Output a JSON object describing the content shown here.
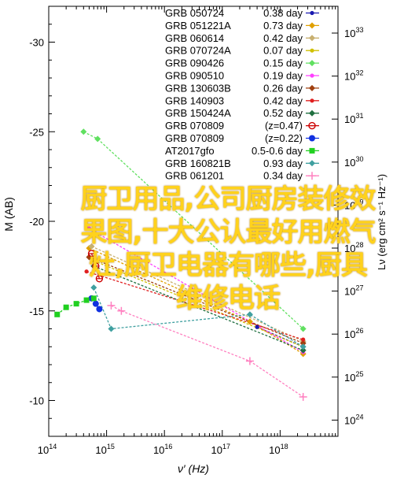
{
  "chart_data": {
    "type": "scatter",
    "title": "",
    "xlabel": "ν′ (Hz)",
    "ylabel_left": "M (AB)",
    "ylabel_right": "Lν (erg cm² s⁻¹ Hz⁻¹)",
    "x_scale": "log",
    "xlim": [
      100000000000000.0,
      1e+19
    ],
    "x_ticks": [
      100000000000000.0,
      1000000000000000.0,
      1e+16,
      1e+17,
      1e+18
    ],
    "x_tick_labels": [
      {
        "base": "10",
        "exp": "14"
      },
      {
        "base": "10",
        "exp": "15"
      },
      {
        "base": "10",
        "exp": "16"
      },
      {
        "base": "10",
        "exp": "17"
      },
      {
        "base": "10",
        "exp": "18"
      }
    ],
    "ylim_left": [
      -8,
      -32
    ],
    "y_ticks_left": [
      -10,
      -15,
      -20,
      -25,
      -30
    ],
    "y_right_ticks": [
      {
        "base": "10",
        "exp": "33"
      },
      {
        "base": "10",
        "exp": "32"
      },
      {
        "base": "10",
        "exp": "31"
      },
      {
        "base": "10",
        "exp": "30"
      },
      {
        "base": "10",
        "exp": "29"
      },
      {
        "base": "10",
        "exp": "28"
      },
      {
        "base": "10",
        "exp": "27"
      },
      {
        "base": "10",
        "exp": "26"
      },
      {
        "base": "10",
        "exp": "25"
      },
      {
        "base": "10",
        "exp": "24"
      }
    ],
    "legend_position": "top-right",
    "series": [
      {
        "name": "GRB 050724",
        "value": "0.38 day",
        "color": "#1a1ab0",
        "marker": "dot",
        "points": [
          [
            4e+17,
            -14.1
          ],
          [
            2.5e+18,
            -13.0
          ]
        ]
      },
      {
        "name": "GRB 051221A",
        "value": "0.73 day",
        "color": "#e0a000",
        "marker": "diamond",
        "points": [
          [
            500000000000000.0,
            -18.5
          ],
          [
            3e+17,
            -14.4
          ],
          [
            2.5e+18,
            -12.6
          ]
        ]
      },
      {
        "name": "GRB 060614",
        "value": "0.42 day",
        "color": "#c8b070",
        "marker": "diamond",
        "points": [
          [
            550000000000000.0,
            -18.6
          ],
          [
            2.5e+18,
            -13.3
          ]
        ]
      },
      {
        "name": "GRB 070724A",
        "value": "0.07 day",
        "color": "#d0c000",
        "marker": "dot",
        "points": [
          [
            600000000000000.0,
            -17.8
          ],
          [
            2.5e+18,
            -13.0
          ]
        ]
      },
      {
        "name": "GRB 090426",
        "value": "0.15 day",
        "color": "#60e060",
        "marker": "diamond",
        "points": [
          [
            400000000000000.0,
            -25.0
          ],
          [
            700000000000000.0,
            -24.6
          ],
          [
            2.5e+18,
            -14.0
          ]
        ]
      },
      {
        "name": "GRB 090510",
        "value": "0.19 day",
        "color": "#ff40ff",
        "marker": "dot",
        "points": [
          [
            500000000000000.0,
            -19.6
          ],
          [
            2.5e+18,
            -12.7
          ]
        ]
      },
      {
        "name": "GRB 130603B",
        "value": "0.26 day",
        "color": "#a04010",
        "marker": "diamond",
        "points": [
          [
            500000000000000.0,
            -18.0
          ],
          [
            2.5e+18,
            -13.2
          ]
        ]
      },
      {
        "name": "GRB 140903",
        "value": "0.42 day",
        "color": "#e02020",
        "marker": "dot",
        "points": [
          [
            450000000000000.0,
            -17.2
          ],
          [
            2.5e+18,
            -13.4
          ]
        ]
      },
      {
        "name": "GRB 150424A",
        "value": "0.52 day",
        "color": "#207040",
        "marker": "diamond",
        "points": [
          [
            600000000000000.0,
            -17.5
          ],
          [
            2.5e+18,
            -12.8
          ]
        ]
      },
      {
        "name": "GRB 070809",
        "value": "(z=0.47)",
        "color": "#cc0000",
        "marker": "open-circle",
        "points": [
          [
            550000000000000.0,
            -18.2
          ],
          [
            650000000000000.0,
            -17.5
          ],
          [
            750000000000000.0,
            -16.8
          ]
        ]
      },
      {
        "name": "GRB 070809",
        "value": "(z=0.22)",
        "color": "#1030e0",
        "marker": "filled-circle",
        "points": [
          [
            550000000000000.0,
            -15.7
          ],
          [
            650000000000000.0,
            -15.4
          ],
          [
            750000000000000.0,
            -15.1
          ]
        ]
      },
      {
        "name": "AT2017gfo",
        "value": "0.5-0.6 day",
        "color": "#20d020",
        "marker": "square",
        "points": [
          [
            140000000000000.0,
            -14.8
          ],
          [
            200000000000000.0,
            -15.2
          ],
          [
            300000000000000.0,
            -15.4
          ],
          [
            450000000000000.0,
            -15.6
          ],
          [
            600000000000000.0,
            -15.7
          ]
        ]
      },
      {
        "name": "GRB 160821B",
        "value": "0.93 day",
        "color": "#40a0a0",
        "marker": "diamond",
        "points": [
          [
            600000000000000.0,
            -16.3
          ],
          [
            1200000000000000.0,
            -14.0
          ],
          [
            3e+17,
            -14.8
          ],
          [
            2.5e+18,
            -13.0
          ]
        ]
      },
      {
        "name": "GRB 061201",
        "value": "0.34 day",
        "color": "#ff80c0",
        "marker": "plus",
        "points": [
          [
            1200000000000000.0,
            -15.3
          ],
          [
            1800000000000000.0,
            -15.0
          ],
          [
            3e+17,
            -12.2
          ],
          [
            2.5e+18,
            -10.2
          ]
        ]
      }
    ]
  },
  "overlay": {
    "lines": [
      "厨卫用品,公司厨房装修效",
      "果图,十大公认最好用燃气",
      "灶,厨卫电器有哪些,厨具",
      "维修电话"
    ]
  }
}
